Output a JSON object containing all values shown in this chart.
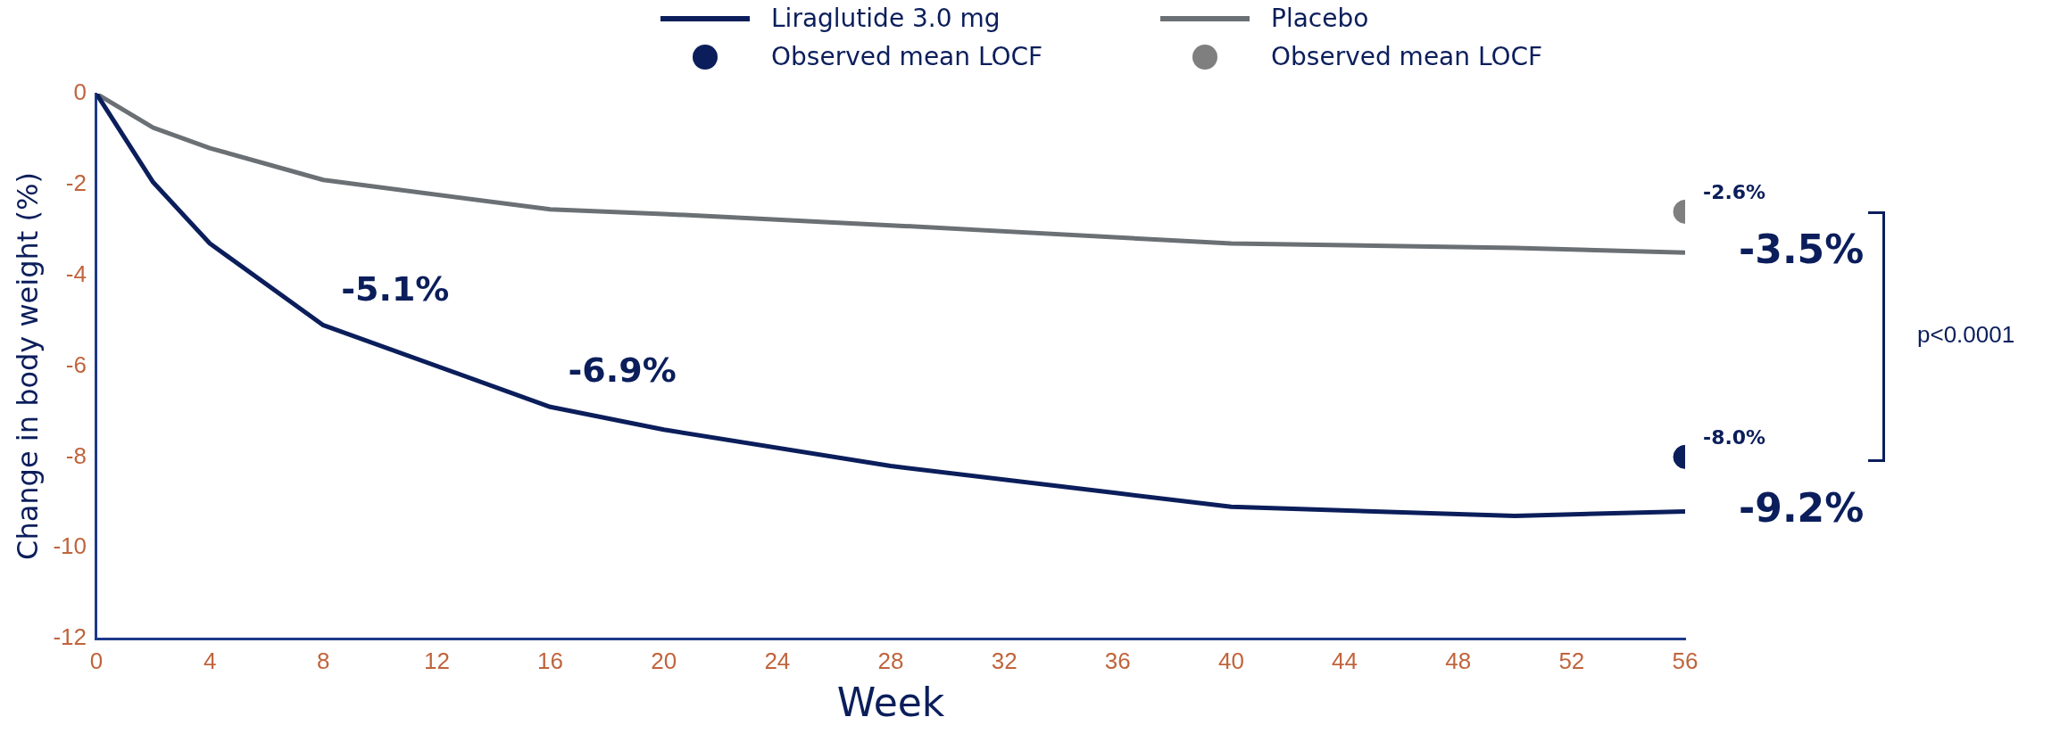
{
  "chart_data": {
    "type": "line",
    "xlabel": "Week",
    "ylabel": "Change in body weight (%)",
    "xlim": [
      0,
      56
    ],
    "xticks": [
      0,
      4,
      8,
      12,
      16,
      20,
      24,
      28,
      32,
      36,
      40,
      44,
      48,
      52,
      56
    ],
    "ylim": [
      -12,
      0
    ],
    "yticks": [
      -12,
      -10,
      -8,
      -6,
      -4,
      -2,
      0
    ],
    "grid": false,
    "legend": "top",
    "line_style": "solid",
    "marker": "none",
    "series": [
      {
        "name": "Liraglutide 3.0 mg",
        "color": "#0b1e5b",
        "x": [
          0,
          2,
          4,
          8,
          16,
          20,
          28,
          36,
          40,
          50,
          56
        ],
        "values": [
          0,
          -1.95,
          -3.3,
          -5.1,
          -6.9,
          -7.4,
          -8.2,
          -8.8,
          -9.1,
          -9.3,
          -9.2
        ]
      },
      {
        "name": "Placebo",
        "color": "#6b7075",
        "x": [
          0,
          2,
          4,
          8,
          16,
          20,
          28,
          40,
          50,
          56
        ],
        "values": [
          0,
          -0.75,
          -1.2,
          -1.9,
          -2.55,
          -2.65,
          -2.9,
          -3.3,
          -3.4,
          -3.5
        ]
      },
      {
        "name": "Observed mean LOCF",
        "type": "scatter",
        "marker": "circle",
        "color": "#0b1e5b",
        "x": [
          56
        ],
        "values": [
          -8.0
        ]
      },
      {
        "name": "Observed mean LOCF",
        "type": "scatter",
        "marker": "circle",
        "color": "#7f7f7f",
        "x": [
          56
        ],
        "values": [
          -2.6
        ]
      }
    ],
    "annotations": [
      {
        "text": "-5.1%",
        "x": 8,
        "y": -5.1
      },
      {
        "text": "-6.9%",
        "x": 16,
        "y": -6.9
      },
      {
        "text": "-3.5%",
        "x": 56,
        "y": -3.5
      },
      {
        "text": "-9.2%",
        "x": 56,
        "y": -9.2
      },
      {
        "text": "-2.6%",
        "x": 56,
        "y": -2.6
      },
      {
        "text": "-8.0%",
        "x": 56,
        "y": -8.0
      },
      "p<0.0001"
    ]
  }
}
